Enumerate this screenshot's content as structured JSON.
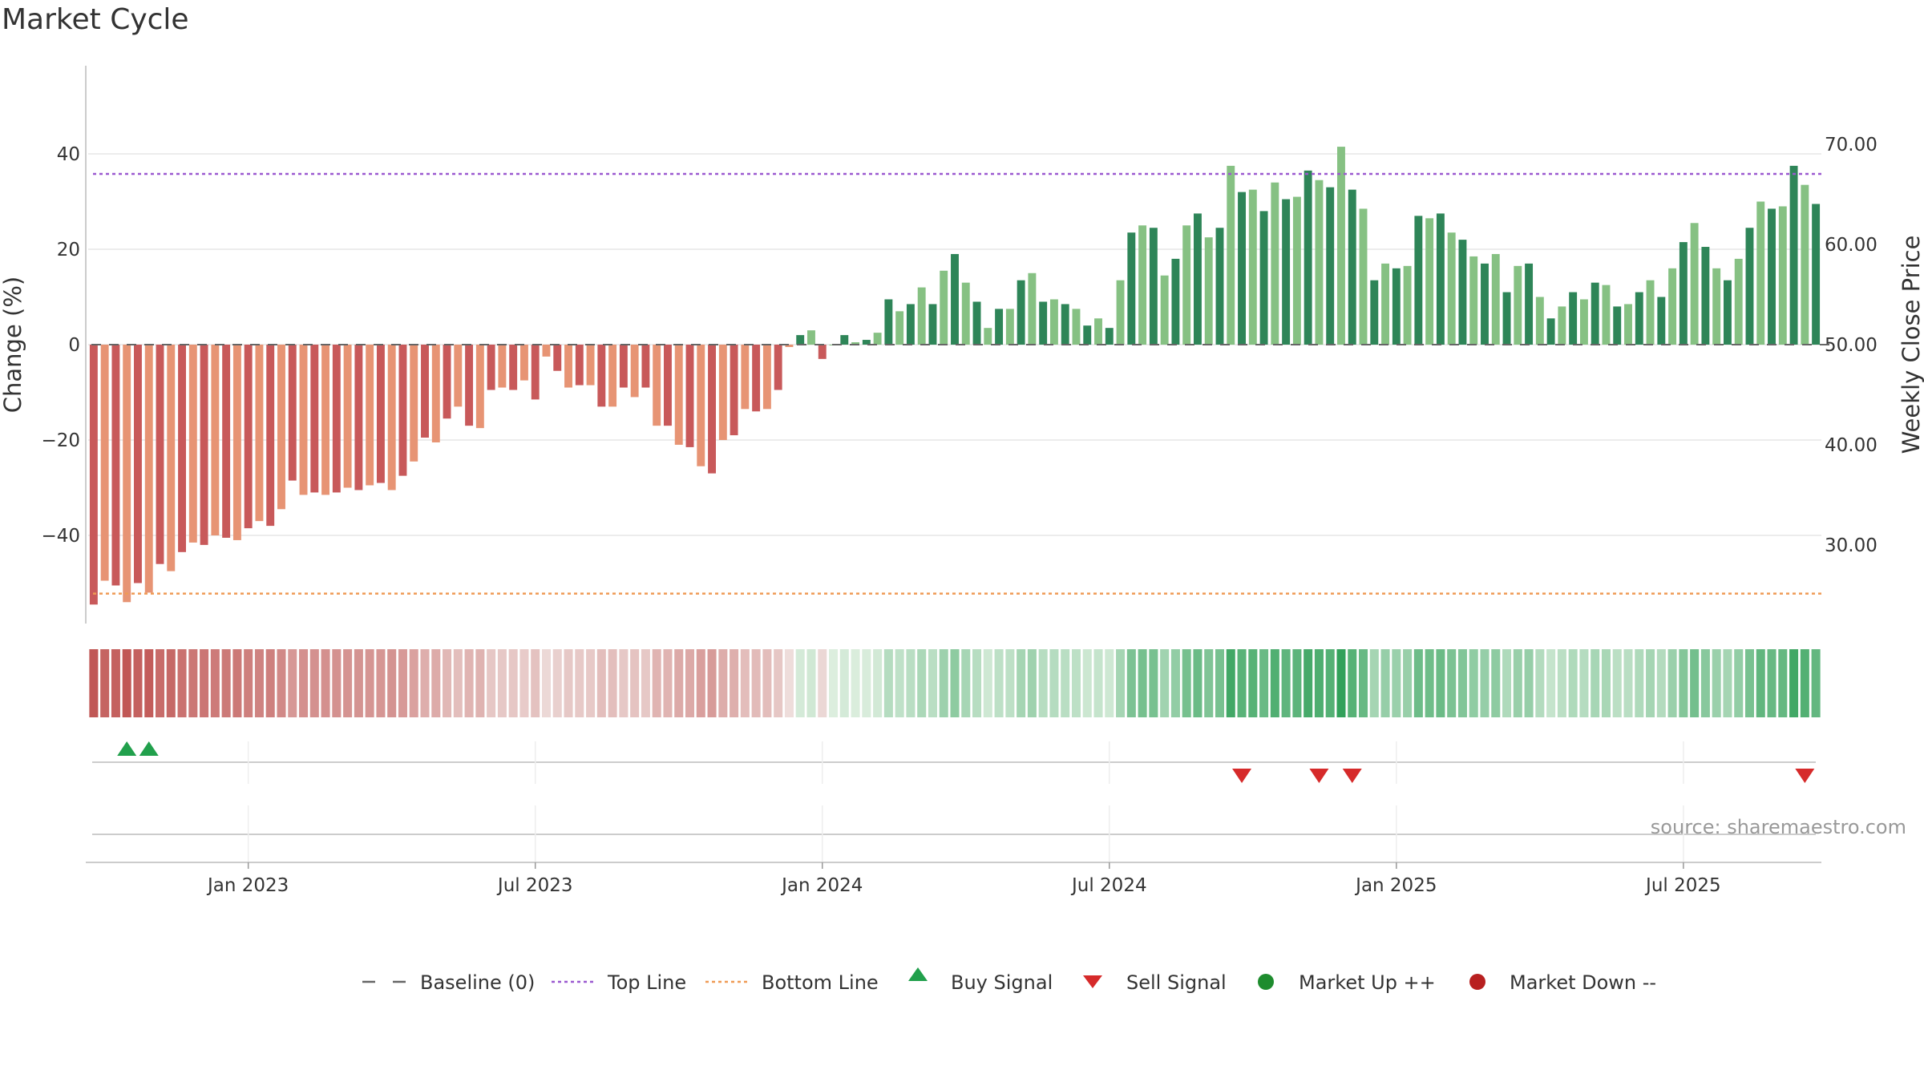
{
  "title": "Market Cycle",
  "source": "source: sharemaestro.com",
  "chart_data": {
    "type": "bar",
    "y_label": "Change (%)",
    "y2_label": "Weekly Close Price",
    "y_ticks": [
      "40",
      "20",
      "0",
      "−20",
      "−40"
    ],
    "y_tick_values": [
      40,
      20,
      0,
      -20,
      -40
    ],
    "y2_ticks": [
      "70.00",
      "60.00",
      "50.00",
      "40.00",
      "30.00"
    ],
    "y2_tick_values": [
      70,
      60,
      50,
      40,
      30
    ],
    "x_ticks": [
      "Jan 2023",
      "Jul 2023",
      "Jan 2024",
      "Jul 2024",
      "Jan 2025",
      "Jul 2025"
    ],
    "x_tick_weeks": [
      14.5,
      40.5,
      66.5,
      92.5,
      118.5,
      144.5
    ],
    "ylim": [
      -58,
      59
    ],
    "y2lim": [
      20.6,
      74.3
    ],
    "top_line": 35.8,
    "bottom_line": -52.2,
    "colors": {
      "red_dark": "#c8595a",
      "red_light": "#e79474",
      "green_dark": "#2e8558",
      "green_light": "#86c183",
      "top_line": "#9b59d0",
      "bottom_line": "#ef9a55",
      "buy": "#21a04c",
      "sell": "#d62a2a",
      "market_up": "#1e8c2e",
      "market_down": "#b82020"
    },
    "values": [
      -54.5,
      -49.5,
      -50.5,
      -54,
      -50,
      -52,
      -46,
      -47.5,
      -43.5,
      -41.5,
      -42,
      -40,
      -40.5,
      -41,
      -38.5,
      -37,
      -38,
      -34.5,
      -28.5,
      -31.5,
      -31,
      -31.5,
      -31,
      -30,
      -30.5,
      -29.5,
      -29,
      -30.5,
      -27.5,
      -24.5,
      -19.5,
      -20.5,
      -15.5,
      -13,
      -17,
      -17.5,
      -9.5,
      -9,
      -9.5,
      -7.5,
      -11.5,
      -2.5,
      -5.5,
      -9,
      -8.5,
      -8.5,
      -13,
      -13,
      -9,
      -11,
      -9,
      -17,
      -17,
      -21,
      -21.5,
      -25.5,
      -27,
      -20,
      -19,
      -13.5,
      -14,
      -13.5,
      -9.5,
      -0.5,
      2,
      3,
      -3,
      0,
      2,
      0.5,
      1,
      2.5,
      9.5,
      7,
      8.5,
      12,
      8.5,
      15.5,
      19,
      13,
      9,
      3.5,
      7.5,
      7.5,
      13.5,
      15,
      9,
      9.5,
      8.5,
      7.5,
      4,
      5.5,
      3.5,
      13.5,
      23.5,
      25,
      24.5,
      14.5,
      18,
      25,
      27.5,
      22.5,
      24.5,
      37.5,
      32,
      32.5,
      28,
      34,
      30.5,
      31,
      36.5,
      34.5,
      33,
      41.5,
      32.5,
      28.5,
      13.5,
      17,
      16,
      16.5,
      27,
      26.5,
      27.5,
      23.5,
      22,
      18.5,
      17,
      19,
      11,
      16.5,
      17,
      10,
      5.5,
      8,
      11,
      9.5,
      13,
      12.5,
      8,
      8.5,
      11,
      13.5,
      10,
      16,
      21.5,
      25.5,
      20.5,
      16,
      13.5,
      18,
      24.5,
      30,
      28.5,
      29,
      37.5,
      33.5,
      29.5
    ],
    "shade": "Pattern: alternating dark and light shades per bar (red for negative, green for positive)",
    "buy_signals_week": [
      3.5,
      5.5
    ],
    "sell_signals_week": [
      104.5,
      111.5,
      114.5,
      155.5
    ],
    "heat_strip": "Cells colored by bar value from dark red (most negative) through pale to dark green (most positive)",
    "legend": [
      {
        "label": "Baseline (0)",
        "symbol": "dash"
      },
      {
        "label": "Top Line",
        "symbol": "dot-purple"
      },
      {
        "label": "Bottom Line",
        "symbol": "dot-orange"
      },
      {
        "label": "Buy Signal",
        "symbol": "triangle-up"
      },
      {
        "label": "Sell Signal",
        "symbol": "triangle-down"
      },
      {
        "label": "Market Up ++",
        "symbol": "circle-green"
      },
      {
        "label": "Market Down --",
        "symbol": "circle-red"
      }
    ]
  }
}
